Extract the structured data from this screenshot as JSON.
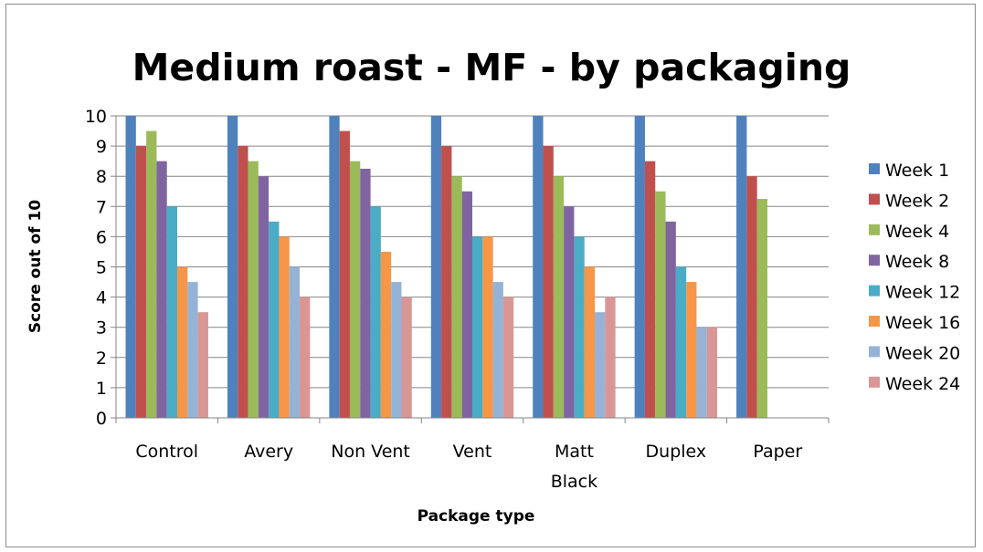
{
  "chart_data": {
    "type": "bar",
    "title": "Medium roast - MF - by packaging",
    "xlabel": "Package type",
    "ylabel": "Score out of 10",
    "ylim": [
      0,
      10
    ],
    "yticks": [
      "0",
      "1",
      "2",
      "3",
      "4",
      "5",
      "6",
      "7",
      "8",
      "9",
      "10"
    ],
    "grid": true,
    "legend_position": "right",
    "categories": [
      "Control",
      "Avery",
      "Non Vent",
      "Vent",
      "Matt Black",
      "Duplex",
      "Paper"
    ],
    "series": [
      {
        "name": "Week 1",
        "color": "#4F81BD",
        "values": [
          10,
          10,
          10,
          10,
          10,
          10,
          10
        ]
      },
      {
        "name": "Week 2",
        "color": "#C0504D",
        "values": [
          9,
          9,
          9.5,
          9,
          9,
          8.5,
          8
        ]
      },
      {
        "name": "Week 4",
        "color": "#9BBB59",
        "values": [
          9.5,
          8.5,
          8.5,
          8,
          8,
          7.5,
          7.25
        ]
      },
      {
        "name": "Week 8",
        "color": "#8064A2",
        "values": [
          8.5,
          8,
          8.25,
          7.5,
          7,
          6.5,
          null
        ]
      },
      {
        "name": "Week 12",
        "color": "#4BACC6",
        "values": [
          7,
          6.5,
          7,
          6,
          6,
          5,
          null
        ]
      },
      {
        "name": "Week 16",
        "color": "#F79646",
        "values": [
          5,
          6,
          5.5,
          6,
          5,
          4.5,
          null
        ]
      },
      {
        "name": "Week 20",
        "color": "#95B3D7",
        "values": [
          4.5,
          5,
          4.5,
          4.5,
          3.5,
          3,
          null
        ]
      },
      {
        "name": "Week 24",
        "color": "#D99694",
        "values": [
          3.5,
          4,
          4,
          4,
          4,
          3,
          null
        ]
      }
    ]
  }
}
